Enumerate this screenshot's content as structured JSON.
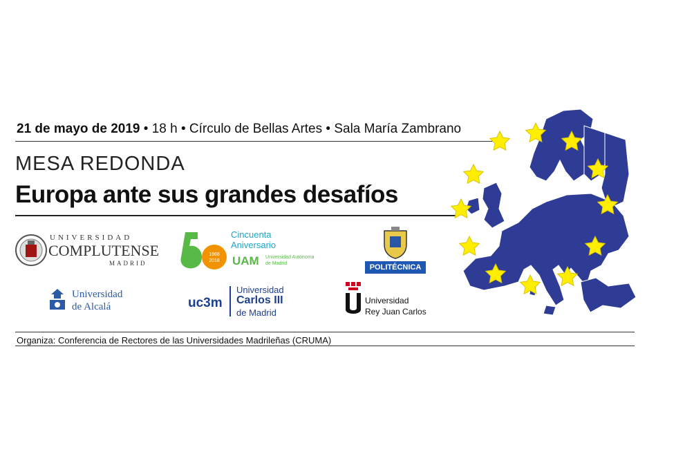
{
  "event": {
    "date": "21 de mayo de 2019",
    "sep": " • ",
    "time": "18 h",
    "venue": "Círculo de Bellas Artes",
    "room": "Sala María Zambrano"
  },
  "kicker": "MESA REDONDA",
  "headline": "Europa ante sus grandes desafíos",
  "organizer": "Organiza: Conferencia de Rectores de las Universidades Madrileñas (CRUMA)",
  "logos": {
    "ucm": {
      "line1": "UNIVERSIDAD",
      "line2": "COMPLUTENSE",
      "line3": "MADRID"
    },
    "uam": {
      "line1": "Cincuenta",
      "line2": "Aniversario",
      "years1": "1968",
      "years2": "2018",
      "name": "UAM",
      "sub1": "Universidad Autónoma",
      "sub2": "de Madrid"
    },
    "upm": {
      "label": "POLITÉCNICA"
    },
    "uah": {
      "line1": "Universidad",
      "line2": "de Alcalá"
    },
    "uc3m": {
      "short": "uc3m",
      "line1": "Universidad",
      "line2": "Carlos III",
      "line3": "de Madrid"
    },
    "urjc": {
      "line1": "Universidad",
      "line2": "Rey Juan Carlos"
    }
  },
  "colors": {
    "eu_blue": "#2e3c96",
    "eu_star": "#ffee00",
    "uam_green": "#58b947",
    "uam_orange": "#f39200",
    "uc3m_blue": "#1d3f8f",
    "urjc_red": "#d2001f"
  }
}
